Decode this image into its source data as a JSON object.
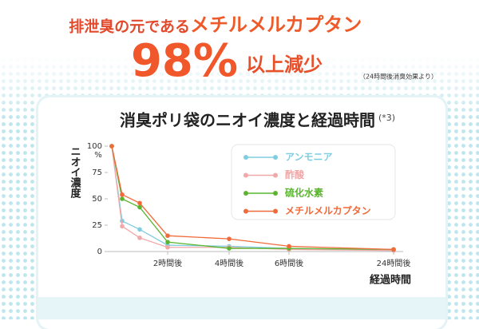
{
  "header": {
    "lead": "排泄臭の元である",
    "subject": "メチルメルカプタン",
    "big": "98%",
    "suffix": "以上減少",
    "note": "（24時間後消臭効果より）"
  },
  "chart_data": {
    "type": "line",
    "title": "消臭ポリ袋のニオイ濃度と経過時間",
    "title_note": "(*3)",
    "y_label": "ニオイ濃度",
    "x_label": "経過時間",
    "y_unit": "%",
    "categories": [
      null,
      null,
      null,
      "2時間後",
      "4時間後",
      "6時間後",
      "24時間後"
    ],
    "ylim": [
      0,
      100
    ],
    "yticks": [
      0,
      25,
      50,
      75,
      100
    ],
    "series": [
      {
        "name": "アンモニア",
        "color": "#7fcde0",
        "values": [
          100,
          29,
          21,
          6,
          5,
          3,
          1
        ]
      },
      {
        "name": "酢酸",
        "color": "#f2a8a8",
        "values": [
          100,
          24,
          13,
          4,
          4,
          2,
          1
        ]
      },
      {
        "name": "硫化水素",
        "color": "#5ab52e",
        "values": [
          100,
          50,
          42,
          9,
          3,
          3,
          2
        ]
      },
      {
        "name": "メチルメルカプタン",
        "color": "#f06a3a",
        "values": [
          100,
          54,
          46,
          15,
          12,
          5,
          2
        ]
      }
    ]
  }
}
